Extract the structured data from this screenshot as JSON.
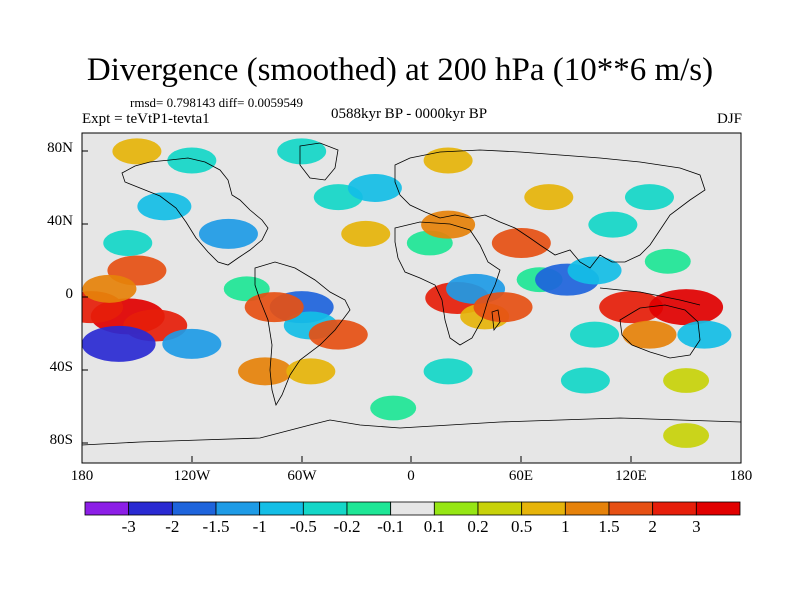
{
  "title": "Divergence (smoothed) at 200 hPa (10**6 m/s)",
  "stats": "rmsd= 0.798143  diff= 0.0059549",
  "experiment": "Expt = teVtP1-tevta1",
  "period": "0588kyr BP - 0000kyr BP",
  "season": "DJF",
  "y_axis_labels": [
    "80N",
    "40N",
    "0",
    "40S",
    "80S"
  ],
  "x_axis_labels": [
    "180",
    "120W",
    "60W",
    "0",
    "60E",
    "120E",
    "180"
  ],
  "colorbar": {
    "labels": [
      "-3",
      "-2",
      "-1.5",
      "-1",
      "-0.5",
      "-0.2",
      "-0.1",
      "0.1",
      "0.2",
      "0.5",
      "1",
      "1.5",
      "2",
      "3"
    ],
    "colors": [
      "#8c1ee6",
      "#2a2ad2",
      "#1e64dc",
      "#1e9be6",
      "#14bee6",
      "#14d7c8",
      "#1ee696",
      "#e6e6e6",
      "#96e614",
      "#c8d20a",
      "#e6b40a",
      "#e6820a",
      "#e65014",
      "#e61e0a",
      "#e10000"
    ]
  },
  "field_regions": [
    {
      "lon": -155,
      "lat": -10,
      "value": 3
    },
    {
      "lon": -175,
      "lat": -5,
      "value": 2
    },
    {
      "lon": -140,
      "lat": -15,
      "value": 2
    },
    {
      "lon": -150,
      "lat": 15,
      "value": 1.5
    },
    {
      "lon": -165,
      "lat": 5,
      "value": 1
    },
    {
      "lon": -160,
      "lat": -25,
      "value": -3
    },
    {
      "lon": -120,
      "lat": -25,
      "value": -1.5
    },
    {
      "lon": -155,
      "lat": 30,
      "value": -0.5
    },
    {
      "lon": -100,
      "lat": 35,
      "value": -1.5
    },
    {
      "lon": -135,
      "lat": 50,
      "value": -1
    },
    {
      "lon": -90,
      "lat": 5,
      "value": -0.2
    },
    {
      "lon": -60,
      "lat": -5,
      "value": -2
    },
    {
      "lon": -55,
      "lat": -15,
      "value": -1
    },
    {
      "lon": -75,
      "lat": -5,
      "value": 1.5
    },
    {
      "lon": -40,
      "lat": -20,
      "value": 1.5
    },
    {
      "lon": -80,
      "lat": -40,
      "value": 1
    },
    {
      "lon": -55,
      "lat": -40,
      "value": 0.5
    },
    {
      "lon": -25,
      "lat": 35,
      "value": 0.5
    },
    {
      "lon": -40,
      "lat": 55,
      "value": -0.5
    },
    {
      "lon": -20,
      "lat": 60,
      "value": -1
    },
    {
      "lon": 10,
      "lat": 30,
      "value": -0.2
    },
    {
      "lon": 20,
      "lat": 40,
      "value": 1
    },
    {
      "lon": 25,
      "lat": 0,
      "value": 2
    },
    {
      "lon": 40,
      "lat": -10,
      "value": 0.5
    },
    {
      "lon": 35,
      "lat": 5,
      "value": -1.5
    },
    {
      "lon": 50,
      "lat": -5,
      "value": 1.5
    },
    {
      "lon": 60,
      "lat": 30,
      "value": 1.5
    },
    {
      "lon": 70,
      "lat": 10,
      "value": -0.2
    },
    {
      "lon": 85,
      "lat": 10,
      "value": -2
    },
    {
      "lon": 100,
      "lat": 15,
      "value": -1
    },
    {
      "lon": 110,
      "lat": 40,
      "value": -0.5
    },
    {
      "lon": 75,
      "lat": 55,
      "value": 0.5
    },
    {
      "lon": 130,
      "lat": 55,
      "value": -0.5
    },
    {
      "lon": 120,
      "lat": -5,
      "value": 2
    },
    {
      "lon": 150,
      "lat": -5,
      "value": 3
    },
    {
      "lon": 130,
      "lat": -20,
      "value": 1
    },
    {
      "lon": 160,
      "lat": -20,
      "value": -1
    },
    {
      "lon": 100,
      "lat": -20,
      "value": -0.5
    },
    {
      "lon": 140,
      "lat": 20,
      "value": -0.2
    },
    {
      "lon": 20,
      "lat": -40,
      "value": -0.5
    },
    {
      "lon": 95,
      "lat": -45,
      "value": -0.5
    },
    {
      "lon": 150,
      "lat": -45,
      "value": 0.2
    },
    {
      "lon": -10,
      "lat": -60,
      "value": -0.2
    },
    {
      "lon": 150,
      "lat": -75,
      "value": 0.2
    },
    {
      "lon": -120,
      "lat": 75,
      "value": -0.5
    },
    {
      "lon": 20,
      "lat": 75,
      "value": 0.5
    },
    {
      "lon": -150,
      "lat": 80,
      "value": 0.5
    },
    {
      "lon": -60,
      "lat": 80,
      "value": -0.5
    }
  ]
}
